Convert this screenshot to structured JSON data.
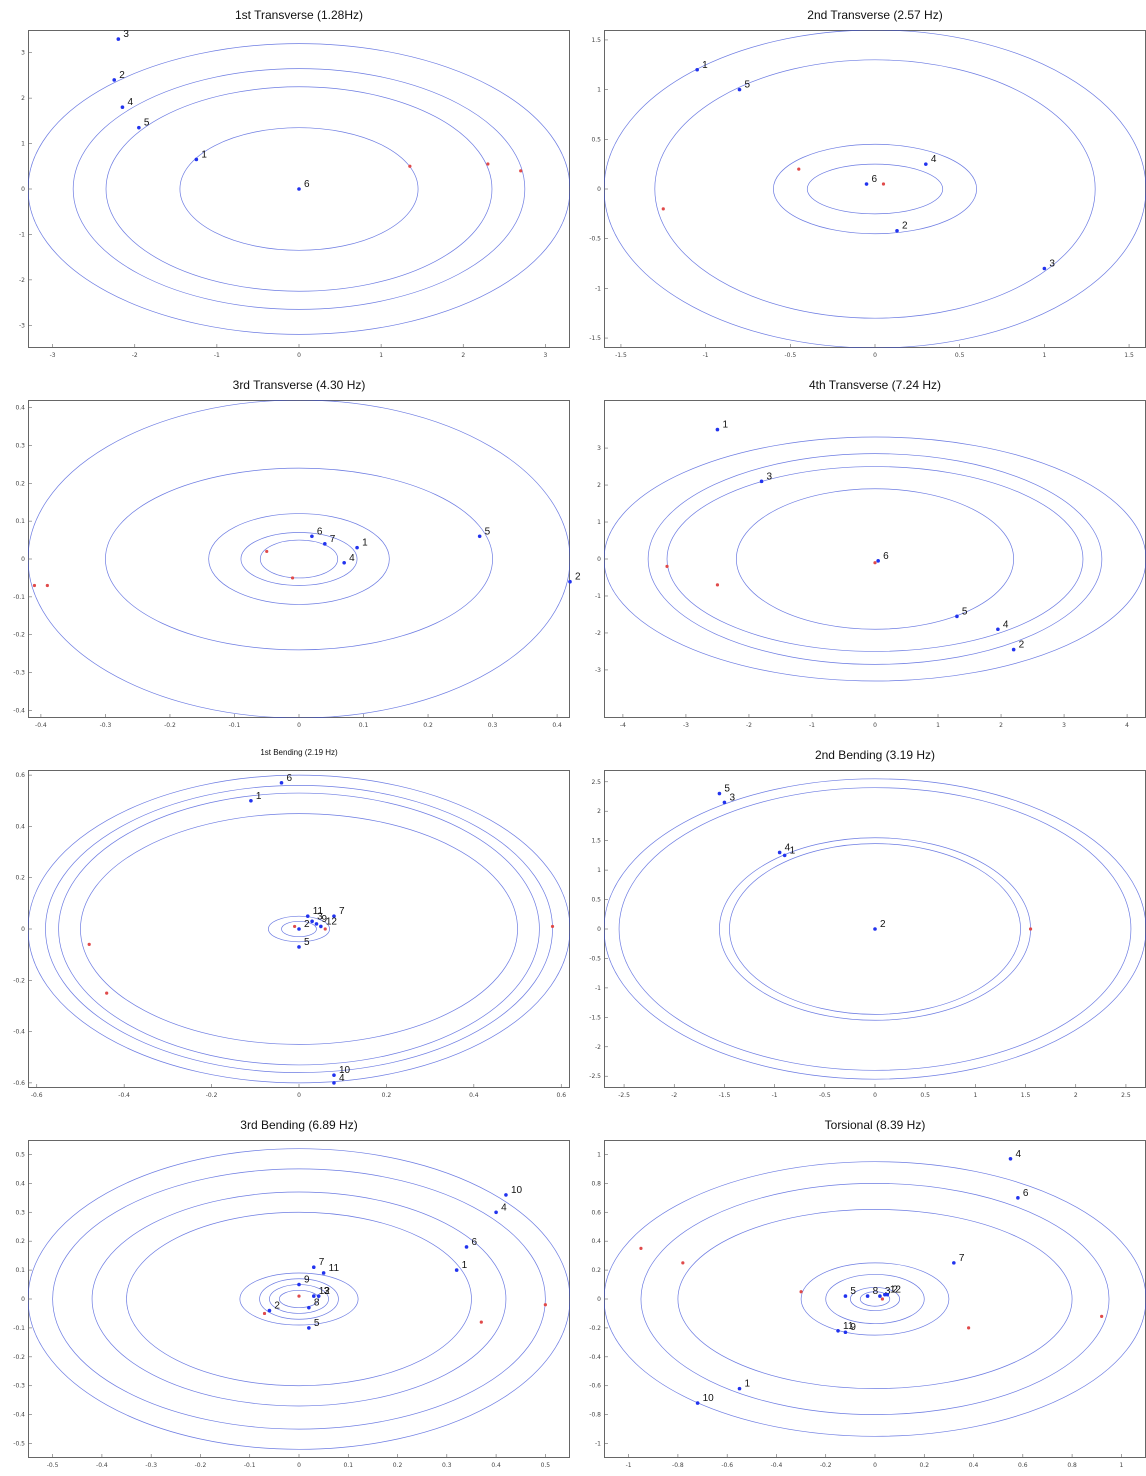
{
  "colors": {
    "orbit": "#3b4fd8",
    "blue_point": "#2233ee",
    "red_point": "#e04a4a",
    "frame": "#666666"
  },
  "chart_data": [
    {
      "type": "scatter",
      "title": "1st Transverse (1.28Hz)",
      "xlim": [
        -3.3,
        3.3
      ],
      "ylim": [
        -3.5,
        3.5
      ],
      "xticks": [
        -3,
        -2,
        -1,
        0,
        1,
        2,
        3
      ],
      "yticks": [
        -3,
        -2,
        -1,
        0,
        1,
        2,
        3
      ],
      "orbits": [
        [
          1.45,
          1.35
        ],
        [
          2.35,
          2.25
        ],
        [
          2.75,
          2.65
        ],
        [
          3.3,
          3.2
        ]
      ],
      "points": [
        {
          "label": "3",
          "x": -2.2,
          "y": 3.3
        },
        {
          "label": "2",
          "x": -2.25,
          "y": 2.4
        },
        {
          "label": "4",
          "x": -2.15,
          "y": 1.8
        },
        {
          "label": "5",
          "x": -1.95,
          "y": 1.35
        },
        {
          "label": "1",
          "x": -1.25,
          "y": 0.65
        },
        {
          "label": "6",
          "x": 0.0,
          "y": 0.0
        }
      ],
      "red_points": [
        [
          1.35,
          0.5
        ],
        [
          2.3,
          0.55
        ],
        [
          2.7,
          0.4
        ]
      ]
    },
    {
      "type": "scatter",
      "title": "2nd Transverse (2.57 Hz)",
      "xlim": [
        -1.6,
        1.6
      ],
      "ylim": [
        -1.6,
        1.6
      ],
      "xticks": [
        -1.5,
        -1,
        -0.5,
        0,
        0.5,
        1,
        1.5
      ],
      "yticks": [
        -1.5,
        -1,
        -0.5,
        0,
        0.5,
        1,
        1.5
      ],
      "orbits": [
        [
          0.4,
          0.25
        ],
        [
          0.6,
          0.45
        ],
        [
          1.3,
          1.3
        ],
        [
          1.6,
          1.6
        ]
      ],
      "points": [
        {
          "label": "1",
          "x": -1.05,
          "y": 1.2
        },
        {
          "label": "5",
          "x": -0.8,
          "y": 1.0
        },
        {
          "label": "4",
          "x": 0.3,
          "y": 0.25
        },
        {
          "label": "6",
          "x": -0.05,
          "y": 0.05
        },
        {
          "label": "2",
          "x": 0.13,
          "y": -0.42
        },
        {
          "label": "3",
          "x": 1.0,
          "y": -0.8
        }
      ],
      "red_points": [
        [
          -0.45,
          0.2
        ],
        [
          -1.25,
          -0.2
        ],
        [
          0.05,
          0.05
        ]
      ]
    },
    {
      "type": "scatter",
      "title": "3rd Transverse (4.30 Hz)",
      "xlim": [
        -0.42,
        0.42
      ],
      "ylim": [
        -0.42,
        0.42
      ],
      "xticks": [
        -0.4,
        -0.3,
        -0.2,
        -0.1,
        0,
        0.1,
        0.2,
        0.3,
        0.4
      ],
      "yticks": [
        -0.4,
        -0.3,
        -0.2,
        -0.1,
        0,
        0.1,
        0.2,
        0.3,
        0.4
      ],
      "orbits": [
        [
          0.06,
          0.05
        ],
        [
          0.09,
          0.07
        ],
        [
          0.14,
          0.12
        ],
        [
          0.3,
          0.24
        ],
        [
          0.42,
          0.42
        ]
      ],
      "points": [
        {
          "label": "6",
          "x": 0.02,
          "y": 0.06
        },
        {
          "label": "7",
          "x": 0.04,
          "y": 0.04
        },
        {
          "label": "1",
          "x": 0.09,
          "y": 0.03
        },
        {
          "label": "4",
          "x": 0.07,
          "y": -0.01
        },
        {
          "label": "5",
          "x": 0.28,
          "y": 0.06
        },
        {
          "label": "2",
          "x": 0.42,
          "y": -0.06
        }
      ],
      "red_points": [
        [
          -0.39,
          -0.07
        ],
        [
          -0.05,
          0.02
        ],
        [
          -0.01,
          -0.05
        ],
        [
          -0.41,
          -0.07
        ]
      ]
    },
    {
      "type": "scatter",
      "title": "4th Transverse (7.24 Hz)",
      "xlim": [
        -4.3,
        4.3
      ],
      "ylim": [
        -4.3,
        4.3
      ],
      "xticks": [
        -4,
        -3,
        -2,
        -1,
        0,
        1,
        2,
        3,
        4
      ],
      "yticks": [
        -3,
        -2,
        -1,
        0,
        1,
        2,
        3
      ],
      "orbits": [
        [
          2.2,
          1.9
        ],
        [
          3.3,
          2.5
        ],
        [
          3.6,
          2.85
        ],
        [
          4.3,
          3.3
        ]
      ],
      "points": [
        {
          "label": "1",
          "x": -2.5,
          "y": 3.5
        },
        {
          "label": "3",
          "x": -1.8,
          "y": 2.1
        },
        {
          "label": "6",
          "x": 0.05,
          "y": -0.05
        },
        {
          "label": "5",
          "x": 1.3,
          "y": -1.55
        },
        {
          "label": "4",
          "x": 1.95,
          "y": -1.9
        },
        {
          "label": "2",
          "x": 2.2,
          "y": -2.45
        }
      ],
      "red_points": [
        [
          -2.5,
          -0.7
        ],
        [
          0.0,
          -0.1
        ],
        [
          -3.3,
          -0.2
        ]
      ]
    },
    {
      "type": "scatter",
      "title": "1st Bending (2.19 Hz)",
      "xlim": [
        -0.62,
        0.62
      ],
      "ylim": [
        -0.62,
        0.62
      ],
      "xticks": [
        -0.6,
        -0.4,
        -0.2,
        0,
        0.2,
        0.4,
        0.6
      ],
      "yticks": [
        -0.6,
        -0.4,
        -0.2,
        0,
        0.2,
        0.4,
        0.6
      ],
      "orbits": [
        [
          0.04,
          0.03
        ],
        [
          0.07,
          0.05
        ],
        [
          0.5,
          0.45
        ],
        [
          0.55,
          0.53
        ],
        [
          0.58,
          0.56
        ],
        [
          0.62,
          0.6
        ]
      ],
      "points": [
        {
          "label": "6",
          "x": -0.04,
          "y": 0.57
        },
        {
          "label": "1",
          "x": -0.11,
          "y": 0.5
        },
        {
          "label": "11",
          "x": 0.02,
          "y": 0.05
        },
        {
          "label": "7",
          "x": 0.08,
          "y": 0.05
        },
        {
          "label": "3",
          "x": 0.03,
          "y": 0.03
        },
        {
          "label": "9",
          "x": 0.04,
          "y": 0.02
        },
        {
          "label": "12",
          "x": 0.05,
          "y": 0.01
        },
        {
          "label": "2",
          "x": 0.0,
          "y": 0.0
        },
        {
          "label": "5",
          "x": 0.0,
          "y": -0.07
        },
        {
          "label": "10",
          "x": 0.08,
          "y": -0.57
        },
        {
          "label": "4",
          "x": 0.08,
          "y": -0.6
        }
      ],
      "red_points": [
        [
          -0.48,
          -0.06
        ],
        [
          -0.44,
          -0.25
        ],
        [
          0.58,
          0.01
        ],
        [
          0.06,
          0.0
        ],
        [
          -0.01,
          0.01
        ]
      ]
    },
    {
      "type": "scatter",
      "title": "2nd Bending (3.19 Hz)",
      "xlim": [
        -2.7,
        2.7
      ],
      "ylim": [
        -2.7,
        2.7
      ],
      "xticks": [
        -2.5,
        -2,
        -1.5,
        -1,
        -0.5,
        0,
        0.5,
        1,
        1.5,
        2,
        2.5
      ],
      "yticks": [
        -2.5,
        -2,
        -1.5,
        -1,
        -0.5,
        0,
        0.5,
        1,
        1.5,
        2,
        2.5
      ],
      "orbits": [
        [
          1.45,
          1.45
        ],
        [
          1.55,
          1.55
        ],
        [
          2.55,
          2.4
        ],
        [
          2.7,
          2.55
        ]
      ],
      "points": [
        {
          "label": "5",
          "x": -1.55,
          "y": 2.3
        },
        {
          "label": "3",
          "x": -1.5,
          "y": 2.15
        },
        {
          "label": "4",
          "x": -0.95,
          "y": 1.3
        },
        {
          "label": "1",
          "x": -0.9,
          "y": 1.25
        },
        {
          "label": "2",
          "x": 0.0,
          "y": 0.0
        }
      ],
      "red_points": [
        [
          1.55,
          0.0
        ]
      ]
    },
    {
      "type": "scatter",
      "title": "3rd Bending (6.89 Hz)",
      "xlim": [
        -0.55,
        0.55
      ],
      "ylim": [
        -0.55,
        0.55
      ],
      "xticks": [
        -0.5,
        -0.4,
        -0.3,
        -0.2,
        -0.1,
        0,
        0.1,
        0.2,
        0.3,
        0.4,
        0.5
      ],
      "yticks": [
        -0.5,
        -0.4,
        -0.3,
        -0.2,
        -0.1,
        0,
        0.1,
        0.2,
        0.3,
        0.4,
        0.5
      ],
      "orbits": [
        [
          0.04,
          0.03
        ],
        [
          0.06,
          0.05
        ],
        [
          0.08,
          0.07
        ],
        [
          0.12,
          0.09
        ],
        [
          0.35,
          0.3
        ],
        [
          0.42,
          0.37
        ],
        [
          0.5,
          0.45
        ],
        [
          0.55,
          0.52
        ]
      ],
      "points": [
        {
          "label": "10",
          "x": 0.42,
          "y": 0.36
        },
        {
          "label": "4",
          "x": 0.4,
          "y": 0.3
        },
        {
          "label": "6",
          "x": 0.34,
          "y": 0.18
        },
        {
          "label": "1",
          "x": 0.32,
          "y": 0.1
        },
        {
          "label": "7",
          "x": 0.03,
          "y": 0.11
        },
        {
          "label": "11",
          "x": 0.05,
          "y": 0.09
        },
        {
          "label": "9",
          "x": 0.0,
          "y": 0.05
        },
        {
          "label": "12",
          "x": 0.03,
          "y": 0.01
        },
        {
          "label": "3",
          "x": 0.04,
          "y": 0.01
        },
        {
          "label": "2",
          "x": -0.06,
          "y": -0.04
        },
        {
          "label": "8",
          "x": 0.02,
          "y": -0.03
        },
        {
          "label": "5",
          "x": 0.02,
          "y": -0.1
        }
      ],
      "red_points": [
        [
          -0.07,
          -0.05
        ],
        [
          0.37,
          -0.08
        ],
        [
          0.5,
          -0.02
        ],
        [
          0.0,
          0.01
        ]
      ]
    },
    {
      "type": "scatter",
      "title": "Torsional (8.39 Hz)",
      "xlim": [
        -1.1,
        1.1
      ],
      "ylim": [
        -1.1,
        1.1
      ],
      "xticks": [
        -1,
        -0.8,
        -0.6,
        -0.4,
        -0.2,
        0,
        0.2,
        0.4,
        0.6,
        0.8,
        1
      ],
      "yticks": [
        -1,
        -0.8,
        -0.6,
        -0.4,
        -0.2,
        0,
        0.2,
        0.4,
        0.6,
        0.8,
        1
      ],
      "orbits": [
        [
          0.06,
          0.05
        ],
        [
          0.1,
          0.08
        ],
        [
          0.2,
          0.17
        ],
        [
          0.3,
          0.25
        ],
        [
          0.8,
          0.62
        ],
        [
          0.95,
          0.8
        ],
        [
          1.1,
          0.95
        ]
      ],
      "points": [
        {
          "label": "4",
          "x": 0.55,
          "y": 0.97
        },
        {
          "label": "6",
          "x": 0.58,
          "y": 0.7
        },
        {
          "label": "7",
          "x": 0.32,
          "y": 0.25
        },
        {
          "label": "5",
          "x": -0.12,
          "y": 0.02
        },
        {
          "label": "8",
          "x": -0.03,
          "y": 0.02
        },
        {
          "label": "3",
          "x": 0.02,
          "y": 0.02
        },
        {
          "label": "12",
          "x": 0.04,
          "y": 0.03
        },
        {
          "label": "2",
          "x": 0.05,
          "y": 0.03
        },
        {
          "label": "11",
          "x": -0.15,
          "y": -0.22
        },
        {
          "label": "9",
          "x": -0.12,
          "y": -0.23
        },
        {
          "label": "1",
          "x": -0.55,
          "y": -0.62
        },
        {
          "label": "10",
          "x": -0.72,
          "y": -0.72
        }
      ],
      "red_points": [
        [
          -0.95,
          0.35
        ],
        [
          -0.78,
          0.25
        ],
        [
          0.38,
          -0.2
        ],
        [
          0.92,
          -0.12
        ],
        [
          -0.3,
          0.05
        ],
        [
          0.03,
          0.0
        ]
      ]
    }
  ]
}
